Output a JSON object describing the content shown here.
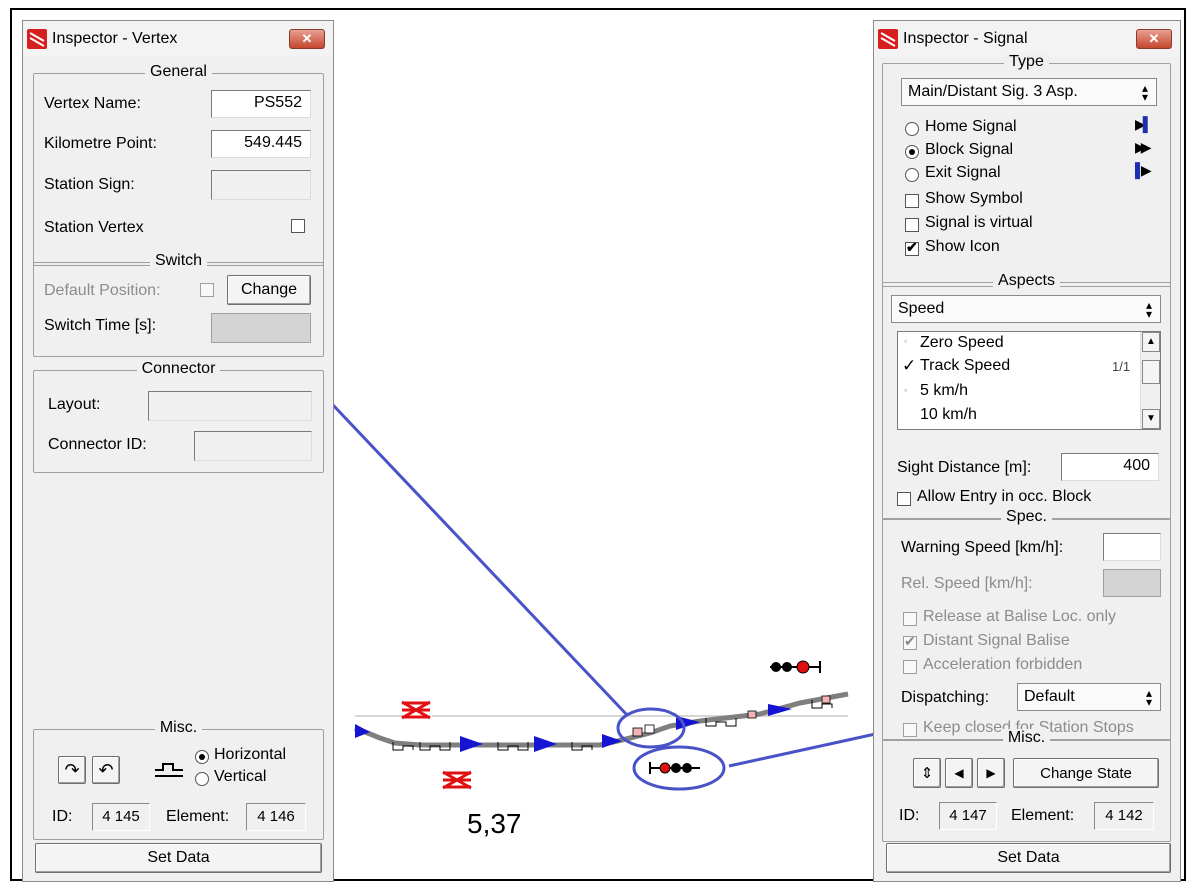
{
  "vertex_inspector": {
    "title": "Inspector - Vertex",
    "close_label": "✕",
    "general": {
      "legend": "General",
      "vertex_name_label": "Vertex Name:",
      "vertex_name_value": "PS552",
      "km_point_label": "Kilometre Point:",
      "km_point_value": "549.445",
      "station_sign_label": "Station Sign:",
      "station_sign_value": "",
      "station_vertex_label": "Station Vertex",
      "station_vertex_checked": false
    },
    "switch": {
      "legend": "Switch",
      "default_position_label": "Default Position:",
      "change_button": "Change",
      "switch_time_label": "Switch Time [s]:",
      "switch_time_value": ""
    },
    "connector": {
      "legend": "Connector",
      "layout_label": "Layout:",
      "layout_value": "",
      "connector_id_label": "Connector ID:",
      "connector_id_value": ""
    },
    "misc": {
      "legend": "Misc.",
      "horizontal_label": "Horizontal",
      "vertical_label": "Vertical",
      "orientation": "Horizontal",
      "id_label": "ID:",
      "id_value": "4 145",
      "element_label": "Element:",
      "element_value": "4 146"
    },
    "set_data_button": "Set Data"
  },
  "signal_inspector": {
    "title": "Inspector - Signal",
    "close_label": "✕",
    "type": {
      "legend": "Type",
      "select_value": "Main/Distant Sig. 3 Asp.",
      "home_signal_label": "Home Signal",
      "block_signal_label": "Block Signal",
      "exit_signal_label": "Exit Signal",
      "selected": "Block Signal",
      "show_symbol_label": "Show Symbol",
      "show_symbol_checked": false,
      "virtual_label": "Signal is virtual",
      "virtual_checked": false,
      "show_icon_label": "Show Icon",
      "show_icon_checked": true
    },
    "aspects": {
      "legend": "Aspects",
      "select_value": "Speed",
      "items": [
        "Zero Speed",
        "Track Speed",
        "5 km/h",
        "10 km/h"
      ],
      "checked_item": "Track Speed",
      "counter": "1/1",
      "sight_distance_label": "Sight Distance [m]:",
      "sight_distance_value": "400",
      "allow_entry_label": "Allow Entry in occ. Block",
      "allow_entry_checked": false
    },
    "spec": {
      "legend": "Spec.",
      "warning_speed_label": "Warning Speed [km/h]:",
      "warning_speed_value": "",
      "rel_speed_label": "Rel. Speed [km/h]:",
      "rel_speed_value": "",
      "release_label": "Release at Balise Loc. only",
      "distant_balise_label": "Distant Signal Balise",
      "accel_label": "Acceleration forbidden",
      "dispatching_label": "Dispatching:",
      "dispatching_value": "Default",
      "keep_closed_label": "Keep closed for Station Stops"
    },
    "misc": {
      "legend": "Misc.",
      "change_state_button": "Change State",
      "id_label": "ID:",
      "id_value": "4 147",
      "element_label": "Element:",
      "element_value": "4 142"
    },
    "set_data_button": "Set Data"
  },
  "track_view": {
    "km_label": "5,37",
    "track_color": "#808080",
    "arrow_color": "#1414d2",
    "callout_color": "#4a52c8",
    "signal_red": "#e01010"
  }
}
